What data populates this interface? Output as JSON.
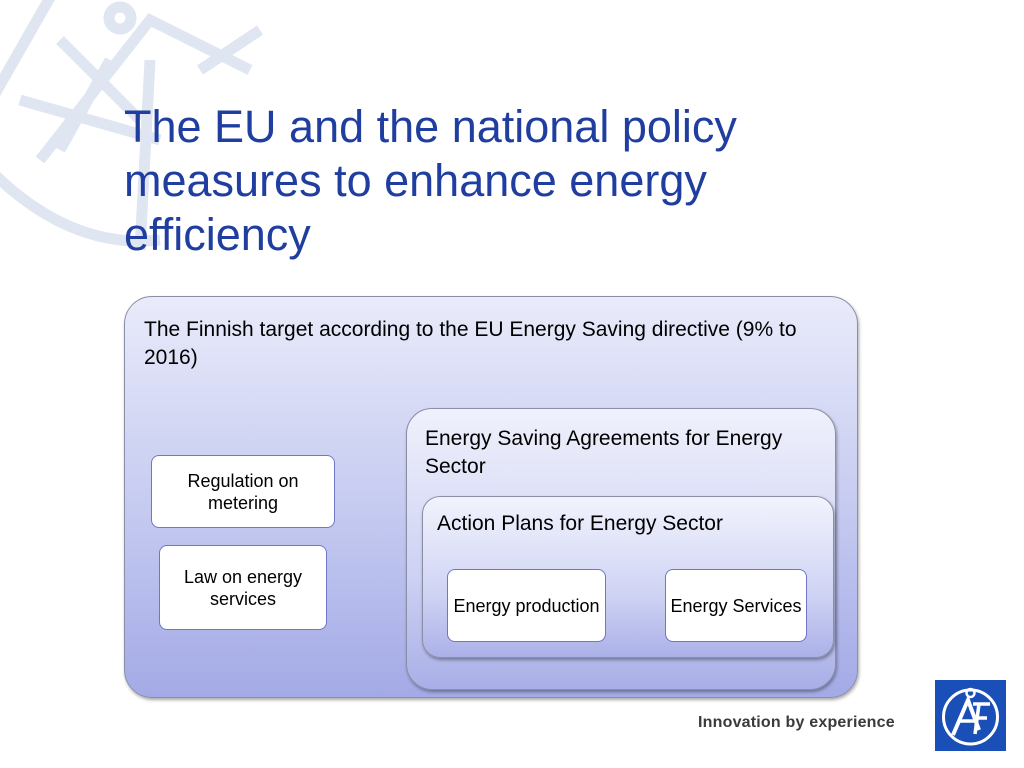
{
  "slide": {
    "title": "The EU and the national policy measures to enhance energy efficiency"
  },
  "diagram": {
    "outer": {
      "label": "The Finnish target according to the EU  Energy Saving directive (9% to 2016)"
    },
    "left_boxes": [
      {
        "label": "Regulation on metering"
      },
      {
        "label": "Law on energy services"
      }
    ],
    "agreements": {
      "label": "Energy Saving Agreements for Energy Sector"
    },
    "action_plans": {
      "label": "Action Plans for Energy Sector"
    },
    "action_boxes": [
      {
        "label": "Energy production"
      },
      {
        "label": "Energy Services"
      }
    ]
  },
  "footer": {
    "tagline": "Innovation by experience",
    "logo_icon": "af-logo-icon",
    "brand_color": "#1a4fb8"
  }
}
